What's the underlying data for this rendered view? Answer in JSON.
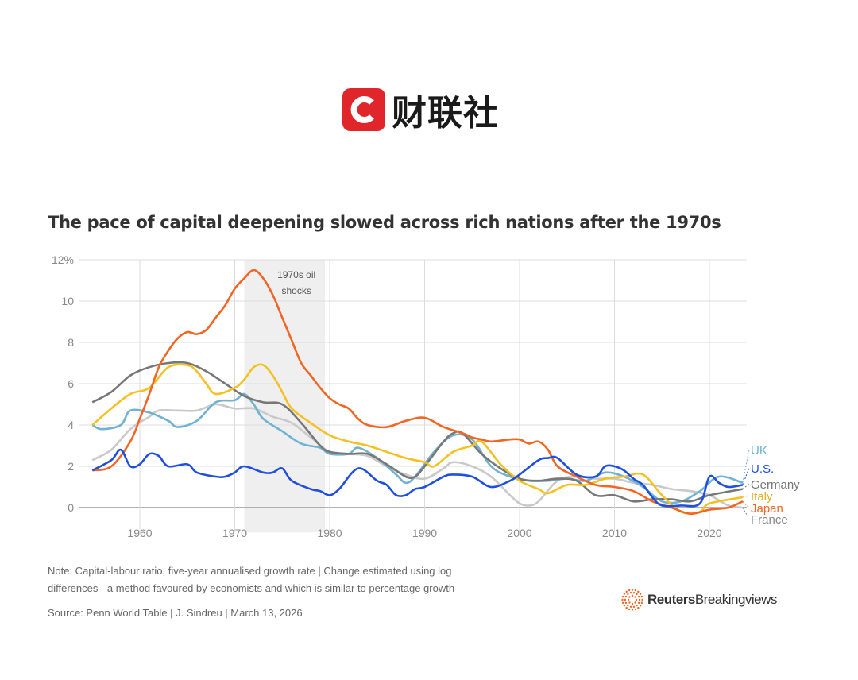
{
  "header": {
    "logo_text": "财联社",
    "logo_letter": "C",
    "logo_color": "#e0262b"
  },
  "chart_data": {
    "type": "line",
    "title": "The pace of capital deepening slowed across rich nations after the 1970s",
    "xlim": [
      1955,
      2024
    ],
    "ylim": [
      -0.5,
      12
    ],
    "x_ticks": [
      "1960",
      "1970",
      "1980",
      "1990",
      "2000",
      "2010",
      "2020"
    ],
    "y_ticks": [
      "12%",
      "10",
      "8",
      "6",
      "4",
      "2",
      "0"
    ],
    "grid": true,
    "legend": "right (inline labels at line ends)",
    "annotation": {
      "label": "1970s oil shocks",
      "x_range": [
        1971,
        1979.5
      ]
    },
    "series": [
      {
        "name": "France",
        "color": "#c9c9c9",
        "points": [
          [
            1955,
            2.3
          ],
          [
            1957,
            2.8
          ],
          [
            1959,
            3.8
          ],
          [
            1961,
            4.4
          ],
          [
            1962,
            4.7
          ],
          [
            1964,
            4.7
          ],
          [
            1966,
            4.7
          ],
          [
            1968,
            5.0
          ],
          [
            1970,
            4.8
          ],
          [
            1972,
            4.8
          ],
          [
            1974,
            4.4
          ],
          [
            1976,
            4.1
          ],
          [
            1978,
            3.4
          ],
          [
            1980,
            2.7
          ],
          [
            1982,
            2.6
          ],
          [
            1984,
            2.5
          ],
          [
            1986,
            2.0
          ],
          [
            1988,
            1.6
          ],
          [
            1990,
            1.4
          ],
          [
            1992,
            1.9
          ],
          [
            1993,
            2.2
          ],
          [
            1995,
            2.0
          ],
          [
            1997,
            1.5
          ],
          [
            1999,
            0.6
          ],
          [
            2000,
            0.2
          ],
          [
            2001,
            0.1
          ],
          [
            2002,
            0.3
          ],
          [
            2004,
            1.3
          ],
          [
            2006,
            1.5
          ],
          [
            2008,
            1.4
          ],
          [
            2010,
            1.4
          ],
          [
            2012,
            1.2
          ],
          [
            2014,
            1.1
          ],
          [
            2016,
            0.9
          ],
          [
            2018,
            0.8
          ],
          [
            2020,
            0.6
          ],
          [
            2022,
            0.1
          ],
          [
            2023.5,
            0.0
          ]
        ]
      },
      {
        "name": "UK",
        "color": "#6fb2d2",
        "points": [
          [
            1955,
            4.0
          ],
          [
            1956,
            3.8
          ],
          [
            1958,
            4.0
          ],
          [
            1959,
            4.7
          ],
          [
            1961,
            4.6
          ],
          [
            1963,
            4.2
          ],
          [
            1964,
            3.9
          ],
          [
            1966,
            4.2
          ],
          [
            1968,
            5.1
          ],
          [
            1970,
            5.2
          ],
          [
            1971,
            5.5
          ],
          [
            1972,
            5.0
          ],
          [
            1973,
            4.3
          ],
          [
            1975,
            3.7
          ],
          [
            1977,
            3.1
          ],
          [
            1979,
            2.9
          ],
          [
            1980,
            2.6
          ],
          [
            1982,
            2.6
          ],
          [
            1983,
            2.9
          ],
          [
            1985,
            2.4
          ],
          [
            1987,
            1.6
          ],
          [
            1988,
            1.2
          ],
          [
            1989,
            1.5
          ],
          [
            1991,
            2.7
          ],
          [
            1993,
            3.5
          ],
          [
            1995,
            3.3
          ],
          [
            1997,
            2.0
          ],
          [
            1999,
            1.5
          ],
          [
            2001,
            1.3
          ],
          [
            2003,
            1.3
          ],
          [
            2005,
            1.4
          ],
          [
            2007,
            1.3
          ],
          [
            2009,
            1.7
          ],
          [
            2011,
            1.5
          ],
          [
            2013,
            1.0
          ],
          [
            2015,
            0.3
          ],
          [
            2017,
            0.3
          ],
          [
            2019,
            0.8
          ],
          [
            2021,
            1.5
          ],
          [
            2023.5,
            1.2
          ]
        ]
      },
      {
        "name": "Germany",
        "color": "#777777",
        "points": [
          [
            1955,
            5.1
          ],
          [
            1957,
            5.6
          ],
          [
            1959,
            6.4
          ],
          [
            1961,
            6.8
          ],
          [
            1963,
            7.0
          ],
          [
            1965,
            7.0
          ],
          [
            1967,
            6.6
          ],
          [
            1969,
            6.0
          ],
          [
            1971,
            5.4
          ],
          [
            1973,
            5.1
          ],
          [
            1975,
            5.0
          ],
          [
            1977,
            4.1
          ],
          [
            1979,
            3.0
          ],
          [
            1980,
            2.7
          ],
          [
            1982,
            2.6
          ],
          [
            1984,
            2.6
          ],
          [
            1986,
            2.1
          ],
          [
            1988,
            1.5
          ],
          [
            1989,
            1.5
          ],
          [
            1990,
            2.0
          ],
          [
            1992,
            3.2
          ],
          [
            1993,
            3.6
          ],
          [
            1994,
            3.6
          ],
          [
            1996,
            2.6
          ],
          [
            1998,
            1.9
          ],
          [
            2000,
            1.4
          ],
          [
            2002,
            1.3
          ],
          [
            2004,
            1.4
          ],
          [
            2006,
            1.3
          ],
          [
            2008,
            0.6
          ],
          [
            2010,
            0.6
          ],
          [
            2012,
            0.3
          ],
          [
            2014,
            0.4
          ],
          [
            2016,
            0.4
          ],
          [
            2018,
            0.3
          ],
          [
            2020,
            0.6
          ],
          [
            2023.5,
            0.9
          ]
        ]
      },
      {
        "name": "Italy",
        "color": "#f5c022",
        "points": [
          [
            1955,
            4.0
          ],
          [
            1957,
            4.8
          ],
          [
            1959,
            5.5
          ],
          [
            1961,
            5.8
          ],
          [
            1963,
            6.8
          ],
          [
            1965,
            6.9
          ],
          [
            1966,
            6.6
          ],
          [
            1967,
            6.0
          ],
          [
            1968,
            5.5
          ],
          [
            1970,
            5.8
          ],
          [
            1971,
            6.2
          ],
          [
            1972,
            6.8
          ],
          [
            1973,
            6.9
          ],
          [
            1974,
            6.4
          ],
          [
            1975,
            5.6
          ],
          [
            1976,
            4.8
          ],
          [
            1978,
            4.1
          ],
          [
            1980,
            3.5
          ],
          [
            1982,
            3.2
          ],
          [
            1984,
            3.0
          ],
          [
            1986,
            2.7
          ],
          [
            1988,
            2.4
          ],
          [
            1990,
            2.2
          ],
          [
            1991,
            2.0
          ],
          [
            1993,
            2.7
          ],
          [
            1995,
            3.0
          ],
          [
            1996,
            3.2
          ],
          [
            1998,
            2.1
          ],
          [
            2000,
            1.3
          ],
          [
            2002,
            0.9
          ],
          [
            2003,
            0.7
          ],
          [
            2005,
            1.1
          ],
          [
            2007,
            1.1
          ],
          [
            2009,
            1.4
          ],
          [
            2011,
            1.5
          ],
          [
            2013,
            1.6
          ],
          [
            2015,
            0.6
          ],
          [
            2017,
            -0.2
          ],
          [
            2019,
            -0.2
          ],
          [
            2020,
            0.2
          ],
          [
            2023.5,
            0.5
          ]
        ]
      },
      {
        "name": "Japan",
        "color": "#f26522",
        "points": [
          [
            1955,
            1.8
          ],
          [
            1957,
            2.0
          ],
          [
            1959,
            3.2
          ],
          [
            1960,
            4.3
          ],
          [
            1961,
            5.5
          ],
          [
            1962,
            6.8
          ],
          [
            1963,
            7.6
          ],
          [
            1964,
            8.2
          ],
          [
            1965,
            8.5
          ],
          [
            1966,
            8.4
          ],
          [
            1967,
            8.6
          ],
          [
            1968,
            9.2
          ],
          [
            1969,
            9.8
          ],
          [
            1970,
            10.6
          ],
          [
            1971,
            11.1
          ],
          [
            1972,
            11.5
          ],
          [
            1973,
            11.1
          ],
          [
            1974,
            10.3
          ],
          [
            1975,
            9.2
          ],
          [
            1976,
            8.1
          ],
          [
            1977,
            7.0
          ],
          [
            1978,
            6.4
          ],
          [
            1979,
            5.8
          ],
          [
            1980,
            5.3
          ],
          [
            1981,
            5.0
          ],
          [
            1982,
            4.8
          ],
          [
            1983,
            4.3
          ],
          [
            1984,
            4.0
          ],
          [
            1986,
            3.9
          ],
          [
            1988,
            4.2
          ],
          [
            1990,
            4.35
          ],
          [
            1992,
            3.9
          ],
          [
            1994,
            3.6
          ],
          [
            1995,
            3.4
          ],
          [
            1996,
            3.3
          ],
          [
            1997,
            3.2
          ],
          [
            1999,
            3.3
          ],
          [
            2000,
            3.3
          ],
          [
            2001,
            3.1
          ],
          [
            2002,
            3.2
          ],
          [
            2003,
            2.8
          ],
          [
            2004,
            2.0
          ],
          [
            2006,
            1.5
          ],
          [
            2008,
            1.1
          ],
          [
            2010,
            1.0
          ],
          [
            2012,
            0.8
          ],
          [
            2014,
            0.3
          ],
          [
            2016,
            0.0
          ],
          [
            2018,
            -0.3
          ],
          [
            2020,
            -0.1
          ],
          [
            2022,
            0.0
          ],
          [
            2023.5,
            0.3
          ]
        ]
      },
      {
        "name": "U.S.",
        "color": "#1f4fe0",
        "points": [
          [
            1955,
            1.8
          ],
          [
            1957,
            2.3
          ],
          [
            1958,
            2.8
          ],
          [
            1959,
            2.0
          ],
          [
            1960,
            2.1
          ],
          [
            1961,
            2.6
          ],
          [
            1962,
            2.5
          ],
          [
            1963,
            2.0
          ],
          [
            1965,
            2.1
          ],
          [
            1966,
            1.7
          ],
          [
            1968,
            1.5
          ],
          [
            1969,
            1.5
          ],
          [
            1970,
            1.7
          ],
          [
            1971,
            2.0
          ],
          [
            1973,
            1.7
          ],
          [
            1974,
            1.7
          ],
          [
            1975,
            1.9
          ],
          [
            1976,
            1.3
          ],
          [
            1978,
            0.9
          ],
          [
            1979,
            0.8
          ],
          [
            1980,
            0.6
          ],
          [
            1981,
            0.9
          ],
          [
            1983,
            1.9
          ],
          [
            1985,
            1.3
          ],
          [
            1986,
            1.1
          ],
          [
            1987,
            0.6
          ],
          [
            1988,
            0.6
          ],
          [
            1989,
            0.9
          ],
          [
            1990,
            1.0
          ],
          [
            1992,
            1.5
          ],
          [
            1993,
            1.6
          ],
          [
            1995,
            1.5
          ],
          [
            1997,
            1.0
          ],
          [
            1999,
            1.3
          ],
          [
            2000,
            1.6
          ],
          [
            2002,
            2.3
          ],
          [
            2003,
            2.4
          ],
          [
            2004,
            2.4
          ],
          [
            2006,
            1.6
          ],
          [
            2008,
            1.5
          ],
          [
            2009,
            2.0
          ],
          [
            2010,
            2.0
          ],
          [
            2011,
            1.8
          ],
          [
            2012,
            1.4
          ],
          [
            2013,
            1.1
          ],
          [
            2014,
            0.5
          ],
          [
            2015,
            0.1
          ],
          [
            2017,
            0.1
          ],
          [
            2019,
            0.2
          ],
          [
            2020,
            1.5
          ],
          [
            2021,
            1.2
          ],
          [
            2022,
            1.0
          ],
          [
            2023.5,
            1.1
          ]
        ]
      }
    ],
    "labels": [
      {
        "text": "UK",
        "color": "#6fb2d2"
      },
      {
        "text": "U.S.",
        "color": "#1f4fe0"
      },
      {
        "text": "Germany",
        "color": "#777777"
      },
      {
        "text": "Italy",
        "color": "#e0b020"
      },
      {
        "text": "Japan",
        "color": "#f26522"
      },
      {
        "text": "France",
        "color": "#888888"
      }
    ]
  },
  "footer": {
    "note_line1": "Note: Capital-labour ratio, five-year annualised growth rate | Change estimated using log",
    "note_line2": "differences - a method favoured by economists and which is similar to percentage growth",
    "source": "Source: Penn World Table | J. Sindreu | March 13, 2026",
    "brand_bold": "Reuters",
    "brand_rest": "Breakingviews",
    "brand_color": "#f26522"
  }
}
